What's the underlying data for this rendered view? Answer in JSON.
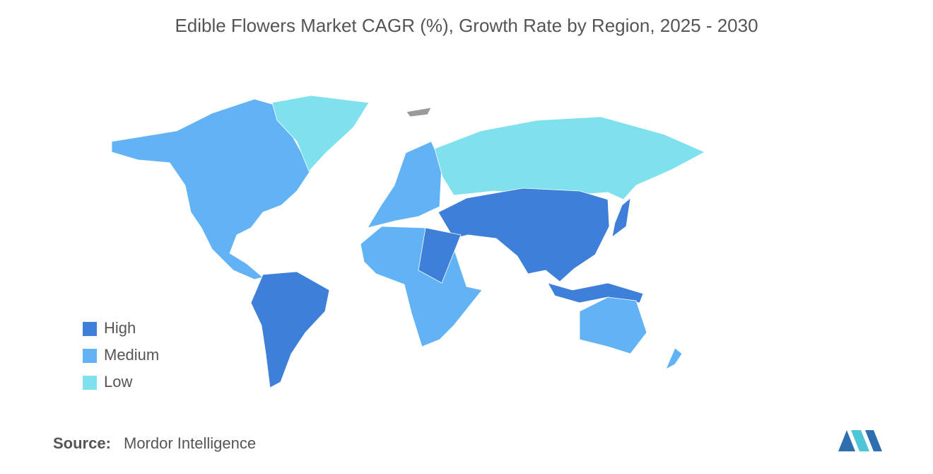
{
  "title": "Edible Flowers Market CAGR (%), Growth Rate by Region, 2025 - 2030",
  "legend": [
    {
      "name": "High",
      "color": "#3d7fd9"
    },
    {
      "name": "Medium",
      "color": "#62b3f5"
    },
    {
      "name": "Low",
      "color": "#7fe0ee"
    }
  ],
  "source": {
    "label": "Source:",
    "text": "Mordor Intelligence"
  }
}
